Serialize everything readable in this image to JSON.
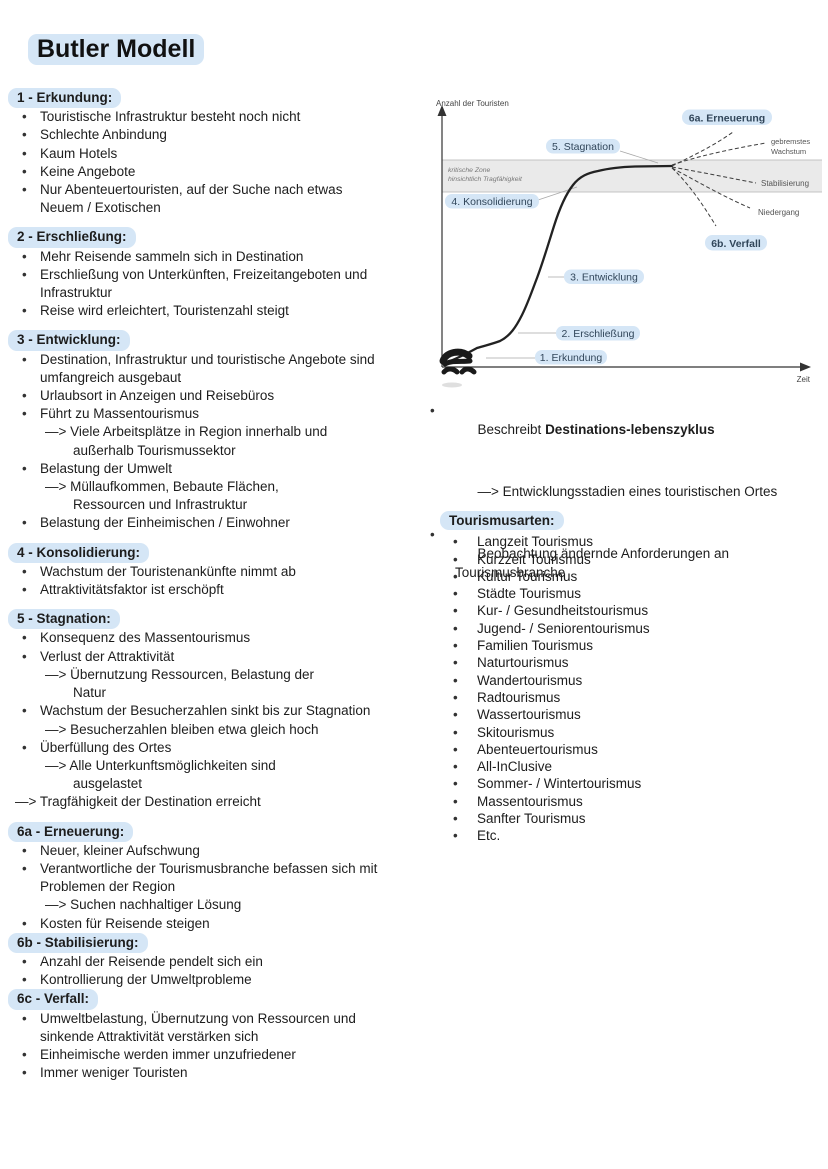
{
  "title": "Butler Modell",
  "markers": {
    "bullet": "•"
  },
  "sections": [
    {
      "id": "1-erkundung",
      "heading": "1 - Erkundung:",
      "items": [
        {
          "type": "bullet",
          "text": "Touristische Infrastruktur besteht noch nicht"
        },
        {
          "type": "bullet",
          "text": "Schlechte Anbindung"
        },
        {
          "type": "bullet",
          "text": "Kaum Hotels"
        },
        {
          "type": "bullet",
          "text": "Keine Angebote"
        },
        {
          "type": "bullet",
          "text": "Nur Abenteuertouristen, auf der Suche nach etwas\nNeuem / Exotischen"
        }
      ]
    },
    {
      "id": "2-erschliessung",
      "heading": "2 - Erschließung:",
      "items": [
        {
          "type": "bullet",
          "text": "Mehr Reisende sammeln sich in Destination"
        },
        {
          "type": "bullet",
          "text": "Erschließung von Unterkünften, Freizeitangeboten und\nInfrastruktur"
        },
        {
          "type": "bullet",
          "text": "Reise wird erleichtert, Touristenzahl steigt"
        }
      ]
    },
    {
      "id": "3-entwicklung",
      "heading": "3 - Entwicklung:",
      "items": [
        {
          "type": "bullet",
          "text": "Destination, Infrastruktur und touristische Angebote sind\numfangreich ausgebaut"
        },
        {
          "type": "bullet",
          "text": "Urlaubsort in Anzeigen und Reisebüros"
        },
        {
          "type": "bullet",
          "text": "Führt zu Massentourismus"
        },
        {
          "type": "arrow",
          "text": "—> Viele Arbeitsplätze in Region innerhalb und\naußerhalb Tourismussektor"
        },
        {
          "type": "bullet",
          "text": "Belastung der Umwelt"
        },
        {
          "type": "arrow",
          "text": "—> Müllaufkommen, Bebaute Flächen,\nRessourcen und Infrastruktur"
        },
        {
          "type": "bullet",
          "text": "Belastung der Einheimischen / Einwohner"
        }
      ]
    },
    {
      "id": "4-konsolidierung",
      "heading": "4 - Konsolidierung:",
      "items": [
        {
          "type": "bullet",
          "text": "Wachstum der Touristenankünfte nimmt ab"
        },
        {
          "type": "bullet",
          "text": "Attraktivitätsfaktor ist erschöpft"
        }
      ]
    },
    {
      "id": "5-stagnation",
      "heading": "5 - Stagnation:",
      "items": [
        {
          "type": "bullet",
          "text": "Konsequenz des Massentourismus"
        },
        {
          "type": "bullet",
          "text": "Verlust der Attraktivität"
        },
        {
          "type": "arrow",
          "text": "—> Übernutzung Ressourcen, Belastung der\nNatur"
        },
        {
          "type": "bullet",
          "text": "Wachstum der Besucherzahlen sinkt bis zur Stagnation"
        },
        {
          "type": "arrow",
          "text": "—> Besucherzahlen bleiben etwa gleich hoch"
        },
        {
          "type": "bullet",
          "text": "Überfüllung des Ortes"
        },
        {
          "type": "arrow",
          "text": "—> Alle Unterkunftsmöglichkeiten sind\nausgelastet"
        },
        {
          "type": "arrow-outer",
          "text": "—> Tragfähigkeit der Destination erreicht"
        }
      ]
    },
    {
      "id": "6a-erneuerung",
      "heading": "6a - Erneuerung:",
      "items": [
        {
          "type": "bullet",
          "text": "Neuer, kleiner Aufschwung"
        },
        {
          "type": "bullet",
          "text": "Verantwortliche der Tourismusbranche befassen sich mit\nProblemen der Region"
        },
        {
          "type": "arrow",
          "text": "—> Suchen nachhaltiger Lösung"
        },
        {
          "type": "bullet",
          "text": "Kosten für Reisende steigen"
        }
      ]
    },
    {
      "id": "6b-stabilisierung",
      "heading": "6b - Stabilisierung:",
      "tight": true,
      "items": [
        {
          "type": "bullet",
          "text": "Anzahl der Reisende pendelt sich ein"
        },
        {
          "type": "bullet",
          "text": "Kontrollierung der Umweltprobleme"
        }
      ]
    },
    {
      "id": "6c-verfall",
      "heading": "6c - Verfall:",
      "tight": true,
      "items": [
        {
          "type": "bullet",
          "text": "Umweltbelastung, Übernutzung von Ressourcen und\nsinkende Attraktivität verstärken sich"
        },
        {
          "type": "bullet",
          "text": "Einheimische werden immer unzufriedener"
        },
        {
          "type": "bullet",
          "text": "Immer weniger Touristen"
        }
      ]
    }
  ],
  "notes": {
    "b1_prefix": "Beschreibt ",
    "b1_bold": "Destinations-lebenszyklus",
    "b1_sub": "—> Entwicklungsstadien eines touristischen Ortes",
    "b2": "Beobachtung ändernde Anforderungen an Tourismusbranche"
  },
  "tourism": {
    "heading": "Tourismusarten:",
    "items": [
      "Langzeit Tourismus",
      "Kurzzeit Tourismus",
      "Kultur Tourismus",
      "Städte Tourismus",
      "Kur- / Gesundheitstourismus",
      "Jugend- / Seniorentourismus",
      "Familien Tourismus",
      "Naturtourismus",
      "Wandertourismus",
      "Radtourismus",
      "Wassertourismus",
      "Skitourismus",
      "Abenteuertourismus",
      "All-InClusive",
      "Sommer- / Wintertourismus",
      "Massentourismus",
      "Sanfter Tourismus",
      "Etc."
    ]
  },
  "chart_data": {
    "type": "line",
    "title": "",
    "xlabel": "Zeit",
    "ylabel": "Anzahl der Touristen",
    "critical_zone": {
      "line1": "kritische Zone",
      "line2": "hinsichtlich Tragfähigkeit"
    },
    "stage_labels": {
      "s1": "1. Erkundung",
      "s2": "2. Erschließung",
      "s3": "3. Entwicklung",
      "s4": "4. Konsolidierung",
      "s5": "5. Stagnation",
      "s6a": "6a. Erneuerung",
      "s6b": "6b. Verfall"
    },
    "branch_labels": {
      "growth1": "gebremstes",
      "growth2": "Wachstum",
      "stabilization": "Stabilisierung",
      "decline": "Niedergang"
    },
    "curve_points_norm_pct": [
      [
        2,
        2
      ],
      [
        8,
        3
      ],
      [
        12,
        5
      ],
      [
        16,
        8
      ],
      [
        19,
        12
      ],
      [
        22,
        20
      ],
      [
        24,
        28
      ],
      [
        26,
        38
      ],
      [
        28,
        48
      ],
      [
        30,
        60
      ],
      [
        32,
        70
      ],
      [
        35,
        80
      ],
      [
        38,
        86
      ],
      [
        43,
        90
      ],
      [
        48,
        92
      ],
      [
        54,
        93
      ],
      [
        63,
        94
      ]
    ],
    "axis_ranges": "qualitative (no numeric ticks)",
    "grid": "off",
    "legend": "none"
  },
  "colors": {
    "highlight": "#d5e6f6",
    "text": "#1d1d1d",
    "chart_label_text": "#31465a",
    "band_fill": "#eaeaea",
    "curve": "#222222"
  }
}
